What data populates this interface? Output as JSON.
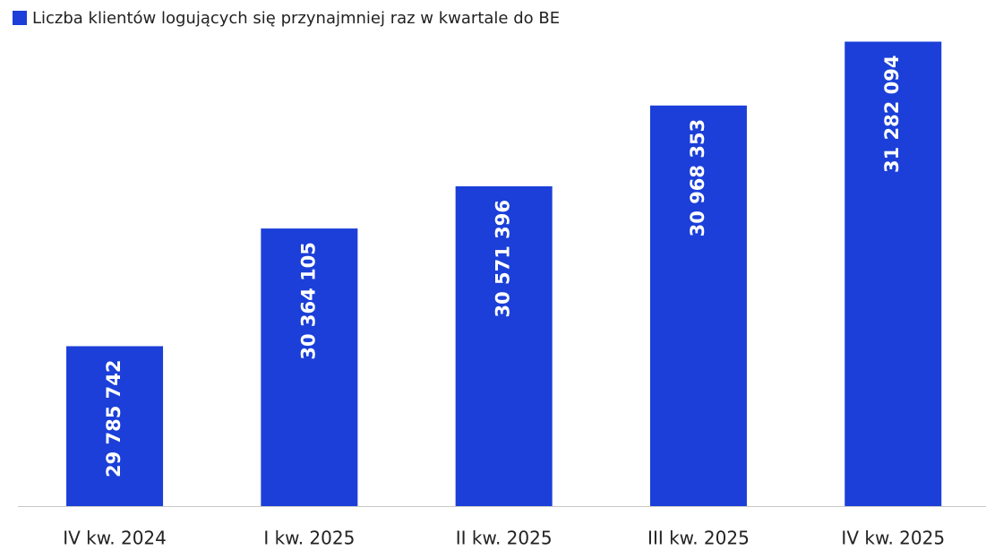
{
  "chart_data": {
    "type": "bar",
    "legend": "Liczba klientów logujących się przynajmniej raz w kwartale do BE",
    "categories": [
      "IV kw. 2024",
      "I kw. 2025",
      "II kw. 2025",
      "III kw. 2025",
      "IV kw. 2025"
    ],
    "values": [
      29785742,
      30364105,
      30571396,
      30968353,
      31282094
    ],
    "value_labels": [
      "29 785 742",
      "30 364 105",
      "30 571 396",
      "30 968 353",
      "31 282 094"
    ],
    "color": "#1b3fd8",
    "ylim": [
      29000000,
      31500000
    ]
  }
}
